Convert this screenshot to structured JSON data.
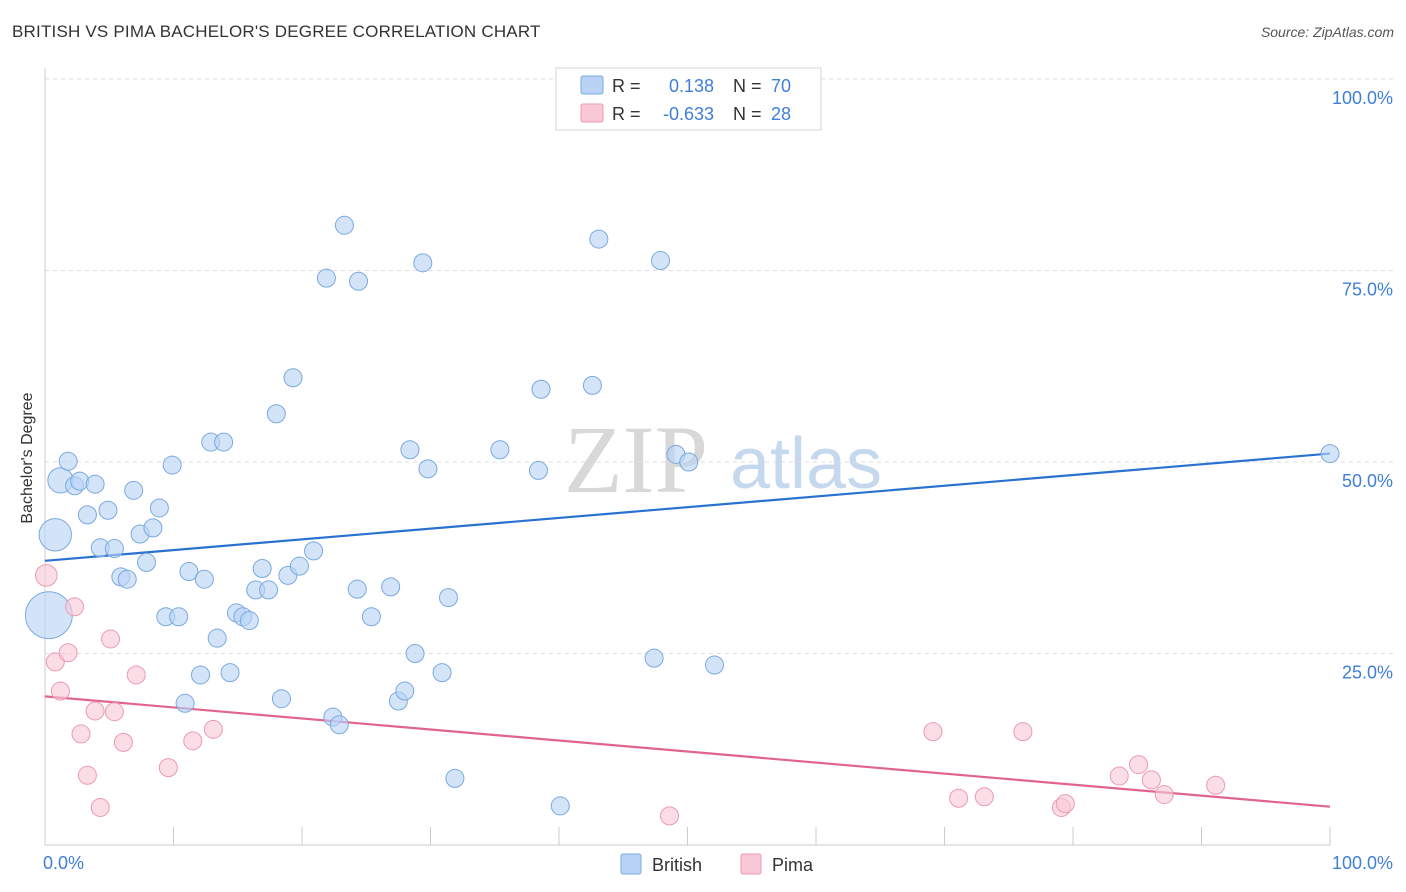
{
  "header": {
    "title": "BRITISH VS PIMA BACHELOR'S DEGREE CORRELATION CHART",
    "source": "Source: ZipAtlas.com"
  },
  "colors": {
    "british_fill": "#b8d3f5",
    "british_stroke": "#7aa9df",
    "british_line": "#2a72d0",
    "pima_fill": "#f9c8d6",
    "pima_stroke": "#ec9ab3",
    "pima_line": "#e0648f",
    "tick_label": "#3f7fd6",
    "grid": "#dddddd"
  },
  "legend_top": [
    {
      "r_label": "R =",
      "r_value": "0.138",
      "n_label": "N =",
      "n_value": "70"
    },
    {
      "r_label": "R =",
      "r_value": "-0.633",
      "n_label": "N =",
      "n_value": "28"
    }
  ],
  "watermark": {
    "zip": "ZIP",
    "atlas": "atlas"
  },
  "chart_data": {
    "type": "scatter",
    "title": "BRITISH VS PIMA BACHELOR'S DEGREE CORRELATION CHART",
    "xlabel": "",
    "ylabel": "Bachelor's Degree",
    "xlim": [
      0,
      100
    ],
    "ylim": [
      0,
      100
    ],
    "x_tick_labels": [
      "0.0%",
      "100.0%"
    ],
    "y_ticks": [
      25,
      50,
      75,
      100
    ],
    "y_tick_labels": [
      "25.0%",
      "50.0%",
      "75.0%",
      "100.0%"
    ],
    "grid": true,
    "legend_position": "bottom-center",
    "series": [
      {
        "name": "British",
        "r": 0.138,
        "n": 70,
        "trend": [
          [
            0,
            37.1
          ],
          [
            100,
            51.1
          ]
        ],
        "points": [
          [
            0.3,
            30.0,
            2.6
          ],
          [
            0.8,
            40.5,
            1.8
          ],
          [
            1.2,
            47.6,
            1.4
          ],
          [
            1.8,
            50.1,
            1.0
          ],
          [
            2.3,
            46.9,
            1.0
          ],
          [
            2.7,
            47.5,
            1.0
          ],
          [
            3.3,
            43.1,
            1.0
          ],
          [
            3.9,
            47.1,
            1.0
          ],
          [
            4.3,
            38.8,
            1.0
          ],
          [
            4.9,
            43.7,
            1.0
          ],
          [
            5.4,
            38.7,
            1.0
          ],
          [
            5.9,
            35.0,
            1.0
          ],
          [
            6.4,
            34.7,
            1.0
          ],
          [
            6.9,
            46.3,
            1.0
          ],
          [
            7.4,
            40.6,
            1.0
          ],
          [
            7.9,
            36.9,
            1.0
          ],
          [
            8.4,
            41.4,
            1.0
          ],
          [
            8.9,
            44.0,
            1.0
          ],
          [
            9.4,
            29.8,
            1.0
          ],
          [
            9.9,
            49.6,
            1.0
          ],
          [
            10.4,
            29.8,
            1.0
          ],
          [
            10.9,
            18.5,
            1.0
          ],
          [
            11.2,
            35.7,
            1.0
          ],
          [
            12.1,
            22.2,
            1.0
          ],
          [
            12.4,
            34.7,
            1.0
          ],
          [
            12.9,
            52.6,
            1.0
          ],
          [
            13.4,
            27.0,
            1.0
          ],
          [
            13.9,
            52.6,
            1.0
          ],
          [
            14.4,
            22.5,
            1.0
          ],
          [
            14.9,
            30.3,
            1.0
          ],
          [
            15.4,
            29.8,
            1.0
          ],
          [
            15.9,
            29.3,
            1.0
          ],
          [
            16.4,
            33.3,
            1.0
          ],
          [
            16.9,
            36.1,
            1.0
          ],
          [
            17.4,
            33.3,
            1.0
          ],
          [
            18.0,
            56.3,
            1.0
          ],
          [
            18.4,
            19.1,
            1.0
          ],
          [
            18.9,
            35.2,
            1.0
          ],
          [
            19.3,
            61.0,
            1.0
          ],
          [
            19.8,
            36.4,
            1.0
          ],
          [
            20.9,
            38.4,
            1.0
          ],
          [
            21.9,
            74.0,
            1.0
          ],
          [
            22.4,
            16.7,
            1.0
          ],
          [
            22.9,
            15.7,
            1.0
          ],
          [
            23.3,
            80.9,
            1.0
          ],
          [
            24.3,
            33.4,
            1.0
          ],
          [
            24.4,
            73.6,
            1.0
          ],
          [
            25.4,
            29.8,
            1.0
          ],
          [
            26.9,
            33.7,
            1.0
          ],
          [
            27.5,
            18.8,
            1.0
          ],
          [
            28.0,
            20.1,
            1.0
          ],
          [
            28.4,
            51.6,
            1.0
          ],
          [
            28.8,
            25.0,
            1.0
          ],
          [
            29.4,
            76.0,
            1.0
          ],
          [
            29.8,
            49.1,
            1.0
          ],
          [
            30.9,
            22.5,
            1.0
          ],
          [
            31.4,
            32.3,
            1.0
          ],
          [
            31.9,
            8.7,
            1.0
          ],
          [
            35.4,
            51.6,
            1.0
          ],
          [
            38.4,
            48.9,
            1.0
          ],
          [
            38.6,
            59.5,
            1.0
          ],
          [
            40.1,
            5.1,
            1.0
          ],
          [
            42.6,
            60.0,
            1.0
          ],
          [
            43.1,
            79.1,
            1.0
          ],
          [
            47.4,
            24.4,
            1.0
          ],
          [
            47.9,
            76.3,
            1.0
          ],
          [
            49.1,
            51.0,
            1.0
          ],
          [
            50.1,
            50.0,
            1.0
          ],
          [
            52.1,
            23.5,
            1.0
          ],
          [
            100.0,
            51.1,
            1.0
          ]
        ]
      },
      {
        "name": "Pima",
        "r": -0.633,
        "n": 28,
        "trend": [
          [
            0,
            19.4
          ],
          [
            100,
            5.0
          ]
        ],
        "points": [
          [
            0.1,
            35.2,
            1.2
          ],
          [
            0.8,
            23.9,
            1.0
          ],
          [
            1.2,
            20.1,
            1.0
          ],
          [
            1.8,
            25.1,
            1.0
          ],
          [
            2.3,
            31.1,
            1.0
          ],
          [
            2.8,
            14.5,
            1.0
          ],
          [
            3.3,
            9.1,
            1.0
          ],
          [
            3.9,
            17.5,
            1.0
          ],
          [
            4.3,
            4.9,
            1.0
          ],
          [
            5.1,
            26.9,
            1.0
          ],
          [
            5.4,
            17.4,
            1.0
          ],
          [
            6.1,
            13.4,
            1.0
          ],
          [
            7.1,
            22.2,
            1.0
          ],
          [
            9.6,
            10.1,
            1.0
          ],
          [
            11.5,
            13.6,
            1.0
          ],
          [
            13.1,
            15.1,
            1.0
          ],
          [
            48.6,
            3.8,
            1.0
          ],
          [
            69.1,
            14.8,
            1.0
          ],
          [
            71.1,
            6.1,
            1.0
          ],
          [
            73.1,
            6.3,
            1.0
          ],
          [
            76.1,
            14.8,
            1.0
          ],
          [
            79.1,
            4.9,
            1.0
          ],
          [
            79.4,
            5.4,
            1.0
          ],
          [
            83.6,
            9.0,
            1.0
          ],
          [
            85.1,
            10.5,
            1.0
          ],
          [
            86.1,
            8.5,
            1.0
          ],
          [
            87.1,
            6.6,
            1.0
          ],
          [
            91.1,
            7.8,
            1.0
          ]
        ]
      }
    ]
  }
}
